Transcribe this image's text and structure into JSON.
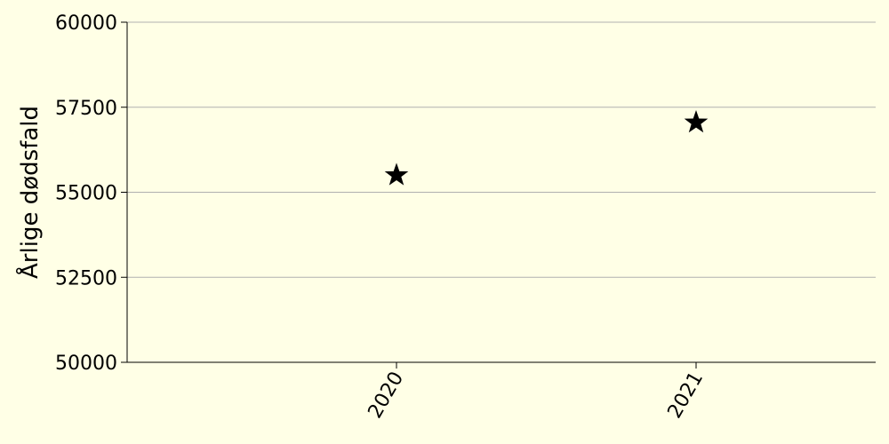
{
  "chart_data": {
    "type": "scatter",
    "title": "",
    "xlabel": "",
    "ylabel": "Årlige dødsfald",
    "categories": [
      "2020",
      "2021"
    ],
    "series": [
      {
        "marker": "star",
        "color": "#000000",
        "values": [
          55500,
          57050
        ]
      }
    ],
    "ylim": [
      50000,
      60000
    ],
    "yticks": [
      50000,
      52500,
      55000,
      57500,
      60000
    ],
    "grid": "horizontal",
    "background": "#ffffe6",
    "grid_color": "#b0b0b0"
  }
}
